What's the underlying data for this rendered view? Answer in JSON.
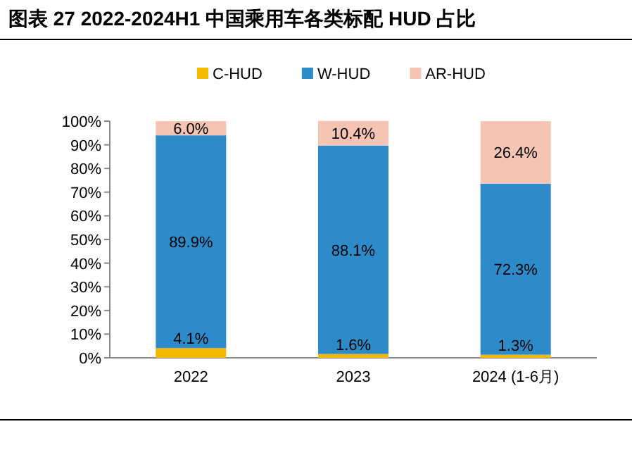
{
  "chart_data": {
    "type": "bar",
    "title": "图表 27 2022-2024H1 中国乘用车各类标配 HUD 占比",
    "categories": [
      "2022",
      "2023",
      "2024 (1-6月)"
    ],
    "stacked": true,
    "legend": "top",
    "ylim": [
      0,
      100
    ],
    "yticks": [
      {
        "value": 0,
        "label": "0%"
      },
      {
        "value": 10,
        "label": "10%"
      },
      {
        "value": 20,
        "label": "20%"
      },
      {
        "value": 30,
        "label": "30%"
      },
      {
        "value": 40,
        "label": "40%"
      },
      {
        "value": 50,
        "label": "50%"
      },
      {
        "value": 60,
        "label": "60%"
      },
      {
        "value": 70,
        "label": "70%"
      },
      {
        "value": 80,
        "label": "80%"
      },
      {
        "value": 90,
        "label": "90%"
      },
      {
        "value": 100,
        "label": "100%"
      }
    ],
    "series": [
      {
        "name": "C-HUD",
        "color": "#f5b800",
        "values": [
          4.1,
          1.6,
          1.3
        ],
        "value_labels": [
          "4.1%",
          "1.6%",
          "1.3%"
        ]
      },
      {
        "name": "W-HUD",
        "color": "#2e8bc9",
        "values": [
          89.9,
          88.1,
          72.3
        ],
        "value_labels": [
          "89.9%",
          "88.1%",
          "72.3%"
        ]
      },
      {
        "name": "AR-HUD",
        "color": "#f5c4b2",
        "values": [
          6.0,
          10.4,
          26.4
        ],
        "value_labels": [
          "6.0%",
          "10.4%",
          "26.4%"
        ]
      }
    ]
  }
}
